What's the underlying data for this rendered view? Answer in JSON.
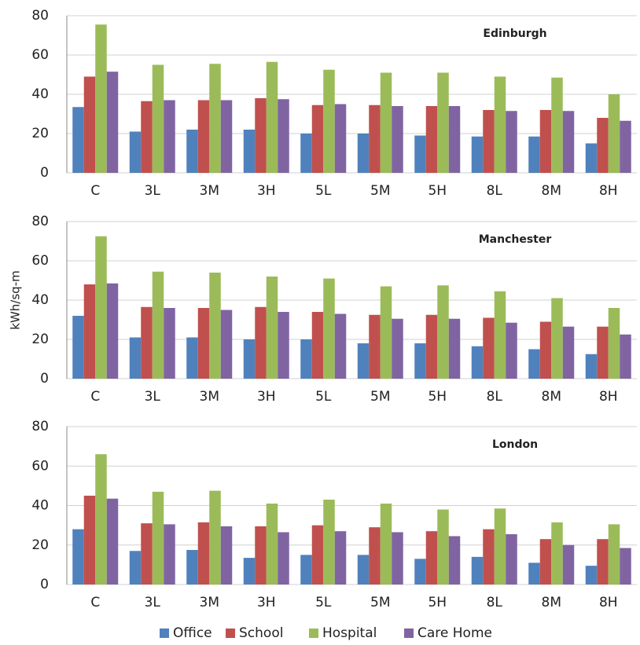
{
  "chart_data": [
    {
      "type": "bar",
      "title": "Edinburgh",
      "categories": [
        "C",
        "3L",
        "3M",
        "3H",
        "5L",
        "5M",
        "5H",
        "8L",
        "8M",
        "8H"
      ],
      "series": [
        {
          "name": "Office",
          "color": "#4f81bd",
          "values": [
            33.5,
            21,
            22,
            22,
            20,
            20,
            19,
            18.5,
            18.5,
            15
          ]
        },
        {
          "name": "School",
          "color": "#c0504d",
          "values": [
            49,
            36.5,
            37,
            38,
            34.5,
            34.5,
            34,
            32,
            32,
            28
          ]
        },
        {
          "name": "Hospital",
          "color": "#9bbb59",
          "values": [
            75.5,
            55,
            55.5,
            56.5,
            52.5,
            51,
            51,
            49,
            48.5,
            40
          ]
        },
        {
          "name": "Care Home",
          "color": "#8064a2",
          "values": [
            51.5,
            37,
            37,
            37.5,
            35,
            34,
            34,
            31.5,
            31.5,
            26.5
          ]
        }
      ],
      "ylim": [
        0,
        80
      ],
      "yticks": [
        0,
        20,
        40,
        60,
        80
      ],
      "grid": true
    },
    {
      "type": "bar",
      "title": "Manchester",
      "ylabel": "kWh/sq-m",
      "categories": [
        "C",
        "3L",
        "3M",
        "3H",
        "5L",
        "5M",
        "5H",
        "8L",
        "8M",
        "8H"
      ],
      "series": [
        {
          "name": "Office",
          "color": "#4f81bd",
          "values": [
            32,
            21,
            21,
            20,
            20,
            18,
            18,
            16.5,
            15,
            12.5
          ]
        },
        {
          "name": "School",
          "color": "#c0504d",
          "values": [
            48,
            36.5,
            36,
            36.5,
            34,
            32.5,
            32.5,
            31,
            29,
            26.5
          ]
        },
        {
          "name": "Hospital",
          "color": "#9bbb59",
          "values": [
            72.5,
            54.5,
            54,
            52,
            51,
            47,
            47.5,
            44.5,
            41,
            36
          ]
        },
        {
          "name": "Care Home",
          "color": "#8064a2",
          "values": [
            48.5,
            36,
            35,
            34,
            33,
            30.5,
            30.5,
            28.5,
            26.5,
            22.5
          ]
        }
      ],
      "ylim": [
        0,
        80
      ],
      "yticks": [
        0,
        20,
        40,
        60,
        80
      ],
      "grid": true
    },
    {
      "type": "bar",
      "title": "London",
      "categories": [
        "C",
        "3L",
        "3M",
        "3H",
        "5L",
        "5M",
        "5H",
        "8L",
        "8M",
        "8H"
      ],
      "series": [
        {
          "name": "Office",
          "color": "#4f81bd",
          "values": [
            28,
            17,
            17.5,
            13.5,
            15,
            15,
            13,
            14,
            11,
            9.5
          ]
        },
        {
          "name": "School",
          "color": "#c0504d",
          "values": [
            45,
            31,
            31.5,
            29.5,
            30,
            29,
            27,
            28,
            23,
            23
          ]
        },
        {
          "name": "Hospital",
          "color": "#9bbb59",
          "values": [
            66,
            47,
            47.5,
            41,
            43,
            41,
            38,
            38.5,
            31.5,
            30.5
          ]
        },
        {
          "name": "Care Home",
          "color": "#8064a2",
          "values": [
            43.5,
            30.5,
            29.5,
            26.5,
            27,
            26.5,
            24.5,
            25.5,
            20,
            18.5
          ]
        }
      ],
      "ylim": [
        0,
        80
      ],
      "yticks": [
        0,
        20,
        40,
        60,
        80
      ],
      "grid": true
    }
  ]
}
